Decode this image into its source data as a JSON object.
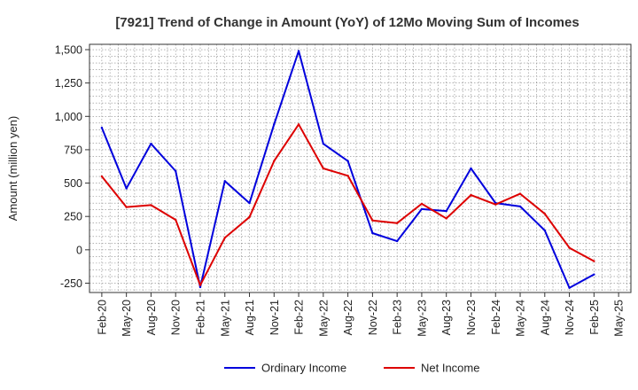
{
  "chart_data": {
    "type": "line",
    "title": "[7921]  Trend of Change in Amount (YoY) of 12Mo Moving Sum of Incomes",
    "ylabel": "Amount (million yen)",
    "xlabel": "",
    "ylim": [
      -320,
      1540
    ],
    "yticks": [
      -250,
      0,
      250,
      500,
      750,
      1000,
      1250,
      1500
    ],
    "ytick_labels": [
      "-250",
      "0",
      "250",
      "500",
      "750",
      "1,000",
      "1,250",
      "1,500"
    ],
    "x_tick_labels": [
      "Feb-20",
      "May-20",
      "Aug-20",
      "Nov-20",
      "Feb-21",
      "May-21",
      "Aug-21",
      "Nov-21",
      "Feb-22",
      "May-22",
      "Aug-22",
      "Nov-22",
      "Feb-23",
      "May-23",
      "Aug-23",
      "Nov-23",
      "Feb-24",
      "May-24",
      "Aug-24",
      "Nov-24",
      "Feb-25",
      "May-25"
    ],
    "legend_position": "bottom",
    "series": [
      {
        "name": "Ordinary Income",
        "color": "#0000dd",
        "values": [
          915,
          460,
          795,
          590,
          -280,
          515,
          350,
          940,
          1490,
          795,
          665,
          125,
          65,
          305,
          290,
          610,
          350,
          325,
          145,
          -285,
          -185
        ]
      },
      {
        "name": "Net Income",
        "color": "#dd0000",
        "values": [
          550,
          320,
          335,
          225,
          -265,
          90,
          245,
          665,
          940,
          610,
          555,
          220,
          200,
          345,
          235,
          410,
          340,
          420,
          270,
          15,
          -85
        ]
      }
    ]
  }
}
